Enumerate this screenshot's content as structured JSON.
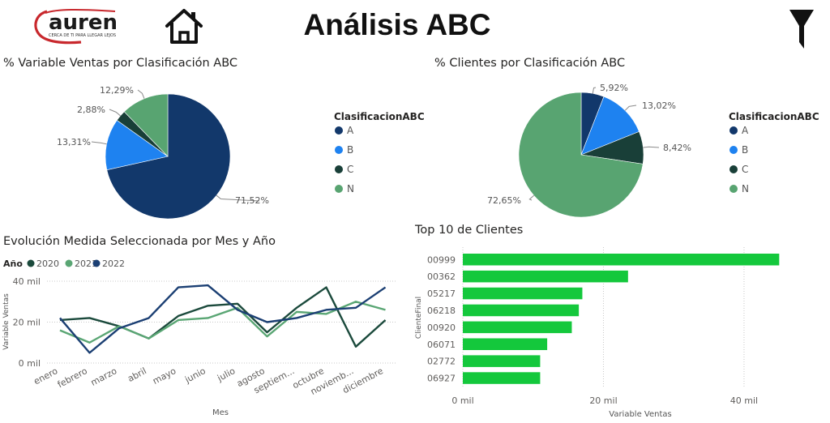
{
  "header": {
    "logo_text": "auren",
    "logo_tagline": "CERCA DE TI PARA LLEGAR LEJOS",
    "title": "Análisis ABC",
    "home_icon": "home-icon",
    "filter_icon": "filter-icon"
  },
  "colors": {
    "A": "#12386B",
    "B": "#1E82F0",
    "C": "#193F38",
    "N": "#58A471",
    "y2020": "#1B4A3C",
    "y2021": "#5AA674",
    "y2022": "#1B3F73",
    "bar": "#14C83C",
    "logo_red": "#C8282D"
  },
  "chart_data": [
    {
      "type": "pie",
      "title": "% Variable Ventas por Clasificación ABC",
      "legend_title": "ClasificacionABC",
      "legend_position": "right",
      "slices": [
        {
          "name": "A",
          "value": 71.52,
          "label": "71,52%"
        },
        {
          "name": "B",
          "value": 13.31,
          "label": "13,31%"
        },
        {
          "name": "C",
          "value": 2.88,
          "label": "2,88%"
        },
        {
          "name": "N",
          "value": 12.29,
          "label": "12,29%"
        }
      ]
    },
    {
      "type": "pie",
      "title": "% Clientes por Clasificación ABC",
      "legend_title": "ClasificacionABC",
      "legend_position": "right",
      "slices": [
        {
          "name": "A",
          "value": 5.92,
          "label": "5,92%"
        },
        {
          "name": "B",
          "value": 13.02,
          "label": "13,02%"
        },
        {
          "name": "C",
          "value": 8.42,
          "label": "8,42%"
        },
        {
          "name": "N",
          "value": 72.65,
          "label": "72,65%"
        }
      ]
    },
    {
      "type": "line",
      "title": "Evolución Medida Seleccionada por Mes y Año",
      "legend_title": "Año",
      "legend_position": "top-left",
      "xlabel": "Mes",
      "ylabel": "Variable Ventas",
      "categories": [
        "enero",
        "febrero",
        "marzo",
        "abril",
        "mayo",
        "junio",
        "julio",
        "agosto",
        "septiem...",
        "octubre",
        "noviemb...",
        "diciembre"
      ],
      "yticks": [
        "0 mil",
        "20 mil",
        "40 mil"
      ],
      "ylim": [
        0,
        40
      ],
      "grid": true,
      "series": [
        {
          "name": "2020",
          "values": [
            21,
            22,
            18,
            12,
            23,
            28,
            29,
            15,
            27,
            37,
            8,
            21
          ]
        },
        {
          "name": "2021",
          "values": [
            16,
            10,
            18,
            12,
            21,
            22,
            27,
            13,
            25,
            24,
            30,
            26
          ]
        },
        {
          "name": "2022",
          "values": [
            22,
            5,
            17,
            22,
            37,
            38,
            26,
            20,
            22,
            26,
            27,
            37
          ]
        }
      ]
    },
    {
      "type": "bar",
      "orientation": "horizontal",
      "title": "Top 10 de Clientes",
      "xlabel": "Variable Ventas",
      "ylabel": "ClienteFinal",
      "categories": [
        "00999",
        "00362",
        "05217",
        "06218",
        "00920",
        "06071",
        "02772",
        "06927"
      ],
      "values": [
        45,
        23.5,
        17,
        16.5,
        15.5,
        12,
        11,
        11
      ],
      "xticks": [
        "0 mil",
        "20 mil",
        "40 mil"
      ],
      "xlim": [
        0,
        46
      ],
      "grid": true
    }
  ]
}
